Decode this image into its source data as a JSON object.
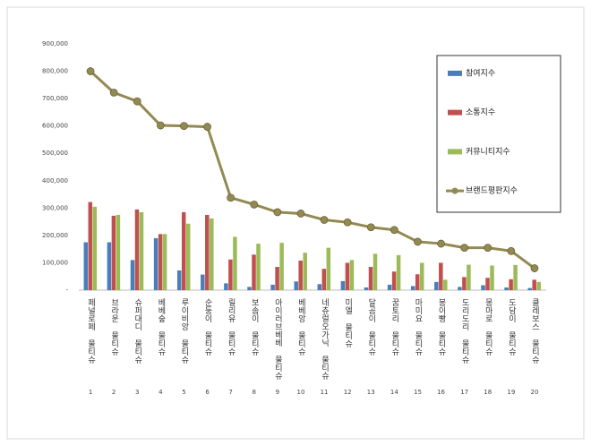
{
  "chart_data": {
    "type": "bar",
    "categories": [
      "페널로페 물티슈",
      "브라운 물티슈",
      "슈퍼대디 물티슈",
      "베베숲 물티슈",
      "루이비앙 물티슈",
      "순둥이 물티슈",
      "릴리유 물티슈",
      "보솜이 물티슈",
      "아이러브베베 물티슈",
      "베베앙 물티슈",
      "네츄럴오가닉 물티슈",
      "미엘 물티슈",
      "달곰이 물티슈",
      "꿈토리 물티슈",
      "마미요 물티슈",
      "봉이빵 물티슈",
      "도리도리 물티슈",
      "몽마로 물티슈",
      "도담이 물티슈",
      "클레보스 물티슈"
    ],
    "ranks": [
      1,
      2,
      3,
      4,
      5,
      6,
      7,
      8,
      9,
      10,
      11,
      12,
      13,
      14,
      15,
      16,
      17,
      18,
      19,
      20
    ],
    "series": [
      {
        "name": "참여지수",
        "type": "bar",
        "color": "#4a7ebb",
        "values": [
          175000,
          175000,
          110000,
          190000,
          72000,
          57000,
          25000,
          12000,
          20000,
          32000,
          22000,
          33000,
          10000,
          20000,
          15000,
          30000,
          12000,
          18000,
          10000,
          8000
        ]
      },
      {
        "name": "소통지수",
        "type": "bar",
        "color": "#c0504d",
        "values": [
          322000,
          272000,
          295000,
          205000,
          285000,
          275000,
          112000,
          130000,
          85000,
          108000,
          78000,
          100000,
          85000,
          68000,
          58000,
          100000,
          48000,
          45000,
          40000,
          38000
        ]
      },
      {
        "name": "커뮤니티지수",
        "type": "bar",
        "color": "#9bbb59",
        "values": [
          305000,
          275000,
          285000,
          205000,
          243000,
          262000,
          195000,
          170000,
          173000,
          137000,
          155000,
          110000,
          133000,
          128000,
          100000,
          38000,
          93000,
          90000,
          92000,
          30000
        ]
      },
      {
        "name": "브랜드평판지수",
        "type": "line",
        "color": "#938953",
        "values": [
          800000,
          722000,
          690000,
          602000,
          600000,
          597000,
          338000,
          313000,
          285000,
          280000,
          257000,
          248000,
          230000,
          220000,
          177000,
          170000,
          155000,
          155000,
          143000,
          80000
        ]
      }
    ],
    "ylim": [
      0,
      900000
    ],
    "yticks": [
      {
        "value": 0,
        "label": "-"
      },
      {
        "value": 100000,
        "label": "100,000"
      },
      {
        "value": 200000,
        "label": "200,000"
      },
      {
        "value": 300000,
        "label": "300,000"
      },
      {
        "value": 400000,
        "label": "400,000"
      },
      {
        "value": 500000,
        "label": "500,000"
      },
      {
        "value": 600000,
        "label": "600,000"
      },
      {
        "value": 700000,
        "label": "700,000"
      },
      {
        "value": 800000,
        "label": "800,000"
      },
      {
        "value": 900000,
        "label": "900,000"
      }
    ],
    "grid": false,
    "legend": "right"
  }
}
